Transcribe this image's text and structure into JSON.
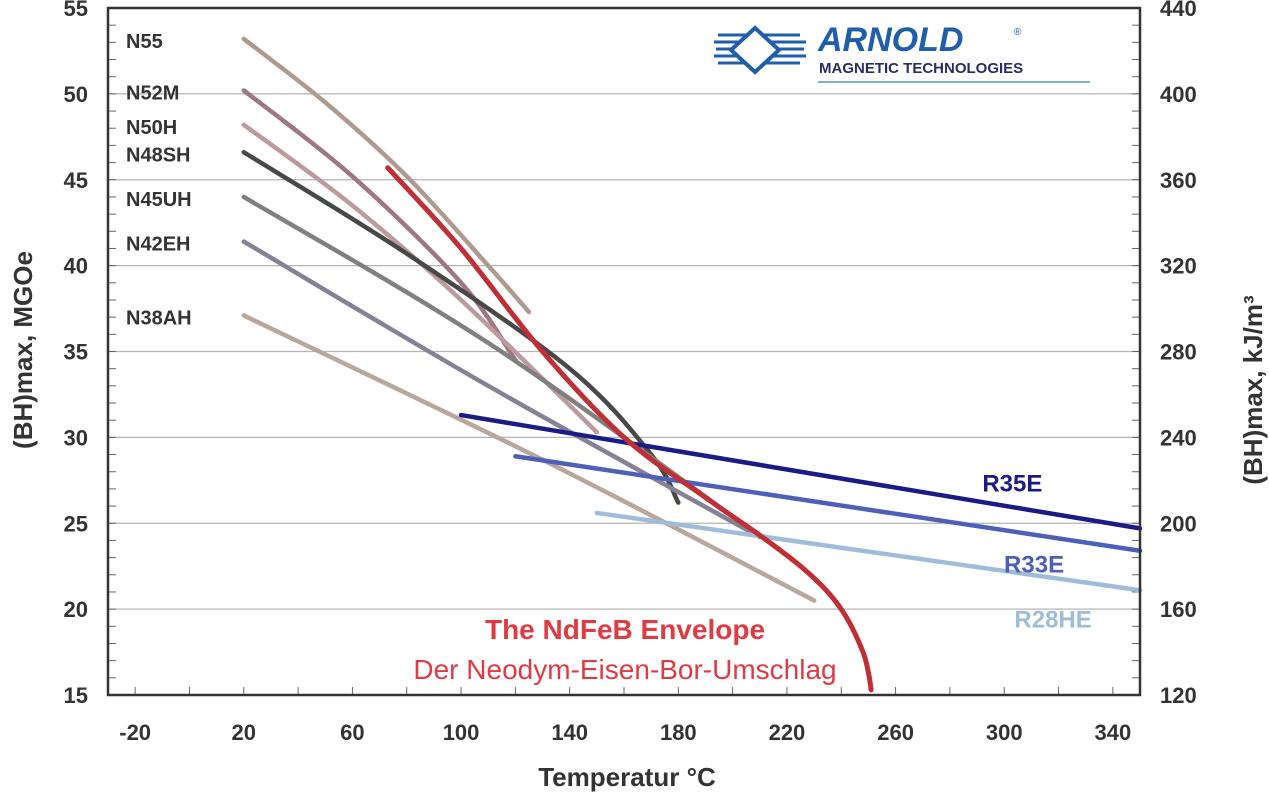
{
  "chart_data": {
    "type": "line",
    "xlabel": "Temperatur °C",
    "ylabel": "(BH)max, MGOe",
    "y2label": "(BH)max, kJ/m³",
    "xlim": [
      -30,
      350
    ],
    "ylim": [
      15,
      55
    ],
    "y2lim": [
      120,
      440
    ],
    "x_ticks": [
      -20,
      20,
      60,
      100,
      140,
      180,
      220,
      260,
      300,
      340
    ],
    "y_ticks": [
      15,
      20,
      25,
      30,
      35,
      40,
      45,
      50,
      55
    ],
    "y2_ticks": [
      120,
      160,
      200,
      240,
      280,
      320,
      360,
      400,
      440
    ],
    "grid": true,
    "series": [
      {
        "name": "N55",
        "color": "#b09a8e",
        "width": 4.5,
        "x": [
          20,
          50,
          80,
          110,
          125
        ],
        "y": [
          53.2,
          49.5,
          45.2,
          40.0,
          37.3
        ]
      },
      {
        "name": "N52M",
        "color": "#9e7684",
        "width": 4.5,
        "x": [
          20,
          60,
          100,
          120
        ],
        "y": [
          50.2,
          45.2,
          39.0,
          34.5
        ]
      },
      {
        "name": "N50H",
        "color": "#bc9a9e",
        "width": 4.5,
        "x": [
          20,
          60,
          100,
          150
        ],
        "y": [
          48.2,
          43.5,
          38.0,
          30.3
        ]
      },
      {
        "name": "N48SH",
        "color": "#484848",
        "width": 4.5,
        "x": [
          20,
          80,
          140,
          170,
          180
        ],
        "y": [
          46.6,
          40.7,
          34.0,
          29.0,
          26.2
        ]
      },
      {
        "name": "N45UH",
        "color": "#808080",
        "width": 4.5,
        "x": [
          20,
          110,
          200
        ],
        "y": [
          44.0,
          35.5,
          25.4
        ]
      },
      {
        "name": "N42EH",
        "color": "#858297",
        "width": 4.5,
        "x": [
          20,
          110,
          210
        ],
        "y": [
          41.4,
          33.0,
          24.2
        ]
      },
      {
        "name": "N38AH",
        "color": "#b9a69c",
        "width": 4.5,
        "x": [
          20,
          130,
          230
        ],
        "y": [
          37.1,
          28.7,
          20.5
        ]
      },
      {
        "name": "R35E",
        "color": "#1b1b88",
        "width": 4.5,
        "x": [
          100,
          350
        ],
        "y": [
          31.3,
          24.7
        ]
      },
      {
        "name": "R33E",
        "color": "#4d5fb8",
        "width": 4.5,
        "x": [
          120,
          350
        ],
        "y": [
          28.9,
          23.4
        ]
      },
      {
        "name": "R28HE",
        "color": "#9fbdd9",
        "width": 4.5,
        "x": [
          150,
          350
        ],
        "y": [
          25.6,
          21.1
        ]
      },
      {
        "name": "The NdFeB Envelope",
        "color": "#bf2f35",
        "width": 5,
        "x": [
          73,
          100,
          130,
          160,
          190,
          210,
          225,
          235,
          242,
          248,
          250,
          251
        ],
        "y": [
          45.7,
          41.0,
          35.0,
          30.0,
          26.5,
          24.3,
          22.5,
          21.0,
          19.5,
          17.5,
          16.3,
          15.3
        ]
      }
    ],
    "series_labels": [
      "N55",
      "N52M",
      "N50H",
      "N48SH",
      "N45UH",
      "N42EH",
      "N38AH"
    ],
    "r_labels": [
      {
        "text": "R35E",
        "color": "#1b1b88",
        "x": 303,
        "y": 27.3
      },
      {
        "text": "R33E",
        "color": "#4d5fb8",
        "x": 311,
        "y": 22.6
      },
      {
        "text": "R28HE",
        "color": "#9fbdd9",
        "x": 318,
        "y": 19.4
      }
    ],
    "annotation": {
      "title": "The NdFeB Envelope",
      "subtitle": "Der Neodym-Eisen-Bor-Umschlag",
      "title_color": "#e03b43",
      "subtitle_color": "#e03b43"
    }
  },
  "logo": {
    "name": "ARNOLD",
    "registered": "®",
    "subtitle": "MAGNETIC TECHNOLOGIES",
    "name_color": "#1f5eaa",
    "subtitle_color": "#2b2b6a",
    "line_color": "#7fb2cf"
  }
}
